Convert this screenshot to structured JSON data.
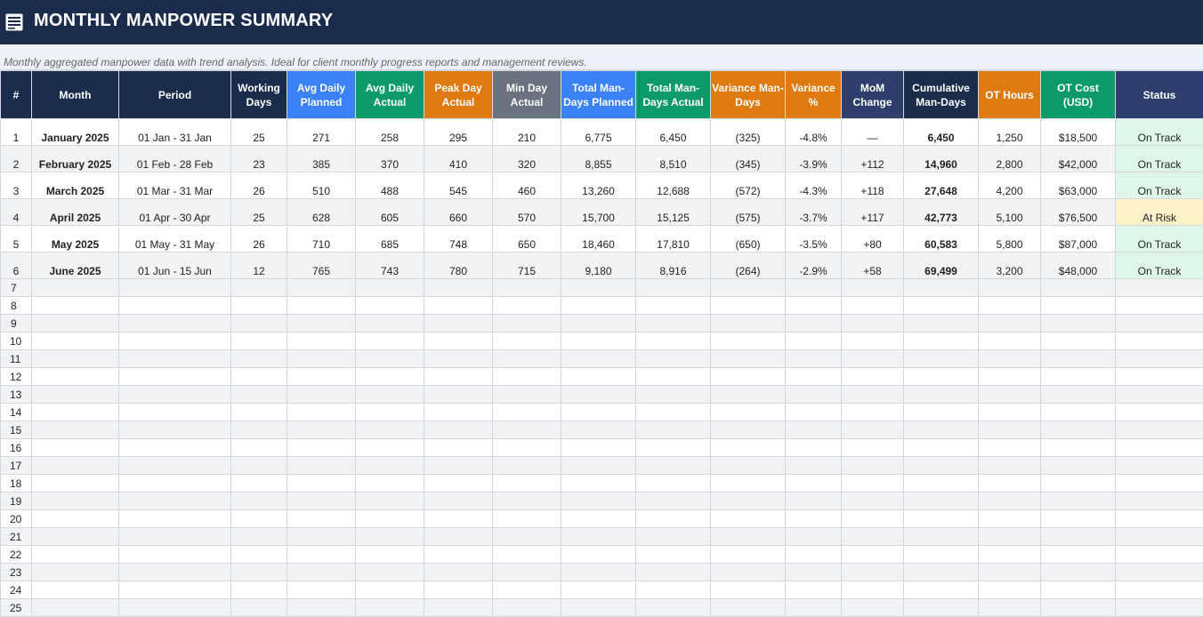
{
  "header": {
    "title": "MONTHLY MANPOWER SUMMARY",
    "icon": "table-icon",
    "subtitle": "Monthly aggregated manpower data with trend analysis. Ideal for client monthly progress reports and management reviews."
  },
  "colors": {
    "title_bg": "#1a2b4c",
    "blue": "#3b82f6",
    "green": "#0c9a6c",
    "orange": "#df7a10",
    "gray": "#6b7280",
    "negative": "#d0202a",
    "on_track_bg": "#dff7e8",
    "at_risk_bg": "#fdf1c7"
  },
  "columns": [
    "#",
    "Month",
    "Period",
    "Working Days",
    "Avg Daily Planned",
    "Avg Daily Actual",
    "Peak Day Actual",
    "Min Day Actual",
    "Total Man-Days Planned",
    "Total Man-Days Actual",
    "Variance Man-Days",
    "Variance %",
    "MoM Change",
    "Cumulative Man-Days",
    "OT Hours",
    "OT Cost (USD)",
    "Status"
  ],
  "rows": [
    {
      "num": "1",
      "month": "January 2025",
      "period": "01 Jan - 31 Jan",
      "working_days": "25",
      "avg_planned": "271",
      "avg_actual": "258",
      "peak": "295",
      "min": "210",
      "total_planned": "6,775",
      "total_actual": "6,450",
      "variance": "(325)",
      "variance_pct": "-4.8%",
      "mom": "—",
      "cumulative": "6,450",
      "ot_hours": "1,250",
      "ot_cost": "$18,500",
      "status": "On Track"
    },
    {
      "num": "2",
      "month": "February 2025",
      "period": "01 Feb - 28 Feb",
      "working_days": "23",
      "avg_planned": "385",
      "avg_actual": "370",
      "peak": "410",
      "min": "320",
      "total_planned": "8,855",
      "total_actual": "8,510",
      "variance": "(345)",
      "variance_pct": "-3.9%",
      "mom": "+112",
      "cumulative": "14,960",
      "ot_hours": "2,800",
      "ot_cost": "$42,000",
      "status": "On Track"
    },
    {
      "num": "3",
      "month": "March 2025",
      "period": "01 Mar - 31 Mar",
      "working_days": "26",
      "avg_planned": "510",
      "avg_actual": "488",
      "peak": "545",
      "min": "460",
      "total_planned": "13,260",
      "total_actual": "12,688",
      "variance": "(572)",
      "variance_pct": "-4.3%",
      "mom": "+118",
      "cumulative": "27,648",
      "ot_hours": "4,200",
      "ot_cost": "$63,000",
      "status": "On Track"
    },
    {
      "num": "4",
      "month": "April 2025",
      "period": "01 Apr - 30 Apr",
      "working_days": "25",
      "avg_planned": "628",
      "avg_actual": "605",
      "peak": "660",
      "min": "570",
      "total_planned": "15,700",
      "total_actual": "15,125",
      "variance": "(575)",
      "variance_pct": "-3.7%",
      "mom": "+117",
      "cumulative": "42,773",
      "ot_hours": "5,100",
      "ot_cost": "$76,500",
      "status": "At Risk"
    },
    {
      "num": "5",
      "month": "May 2025",
      "period": "01 May - 31 May",
      "working_days": "26",
      "avg_planned": "710",
      "avg_actual": "685",
      "peak": "748",
      "min": "650",
      "total_planned": "18,460",
      "total_actual": "17,810",
      "variance": "(650)",
      "variance_pct": "-3.5%",
      "mom": "+80",
      "cumulative": "60,583",
      "ot_hours": "5,800",
      "ot_cost": "$87,000",
      "status": "On Track"
    },
    {
      "num": "6",
      "month": "June 2025",
      "period": "01 Jun - 15 Jun",
      "working_days": "12",
      "avg_planned": "765",
      "avg_actual": "743",
      "peak": "780",
      "min": "715",
      "total_planned": "9,180",
      "total_actual": "8,916",
      "variance": "(264)",
      "variance_pct": "-2.9%",
      "mom": "+58",
      "cumulative": "69,499",
      "ot_hours": "3,200",
      "ot_cost": "$48,000",
      "status": "On Track"
    }
  ],
  "empty_rows": [
    "7",
    "8",
    "9",
    "10",
    "11",
    "12",
    "13",
    "14",
    "15",
    "16",
    "17",
    "18",
    "19",
    "20",
    "21",
    "22",
    "23",
    "24",
    "25"
  ]
}
